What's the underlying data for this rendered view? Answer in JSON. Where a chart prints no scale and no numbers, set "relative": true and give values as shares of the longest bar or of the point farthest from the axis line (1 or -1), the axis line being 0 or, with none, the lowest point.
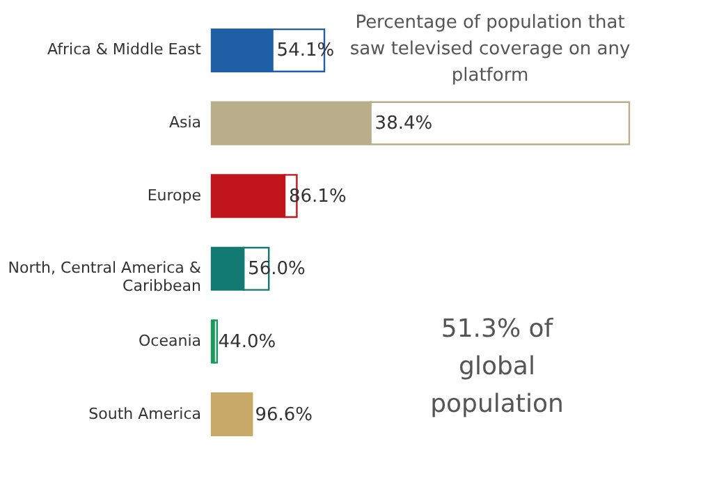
{
  "chart_data": {
    "type": "bar",
    "orientation": "horizontal",
    "stacked": true,
    "relative": true,
    "title": "Percentage of population that saw televised coverage on any platform",
    "categories": [
      "Africa & Middle East",
      "Asia",
      "Europe",
      "North, Central America & Caribbean",
      "Oceania",
      "South America"
    ],
    "series": [
      {
        "colors": [
          "#1f5fa6",
          "#b9ad8a",
          "#c0161b",
          "#127a72",
          "#1a9a5a",
          "#c9a96a"
        ],
        "values": [
          0.146,
          0.381,
          0.175,
          0.077,
          0.006,
          0.094
        ]
      },
      {
        "color": "#ffffff",
        "values": [
          0.124,
          0.619,
          0.029,
          0.06,
          0.007,
          0.003
        ]
      }
    ],
    "annotations": [
      {
        "text": "54.1%",
        "x": 0.146,
        "y": "Africa & Middle East"
      },
      {
        "text": "38.4%",
        "x": 0.381,
        "y": "Asia"
      },
      {
        "text": "86.1%",
        "x": 0.175,
        "y": "Europe"
      },
      {
        "text": "56.0%",
        "x": 0.077,
        "y": "North, Central America & Caribbean"
      },
      {
        "text": "44.0%",
        "x": 0.006,
        "y": "Oceania"
      },
      {
        "text": "96.6%",
        "x": 0.094,
        "y": "South America"
      },
      "51.3% of global population"
    ]
  }
}
